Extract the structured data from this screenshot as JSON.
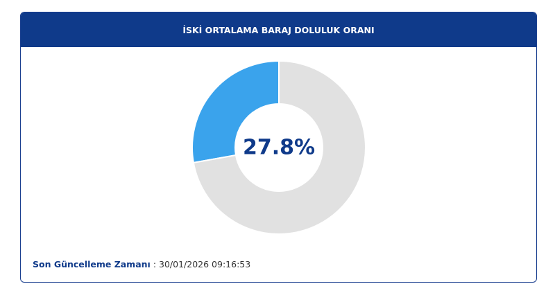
{
  "chart_data": {
    "type": "donut",
    "title": "İSKİ ORTALAMA BARAJ DOLULUK ORANI",
    "values": [
      27.8,
      72.2
    ],
    "value_labels": [
      "27.8%",
      null
    ],
    "colors": [
      "#3aa3ec",
      "#e1e1e1"
    ]
  },
  "footer": {
    "label": "Son Güncelleme Zamanı",
    "separator": ":",
    "value": "30/01/2026 09:16:53"
  }
}
